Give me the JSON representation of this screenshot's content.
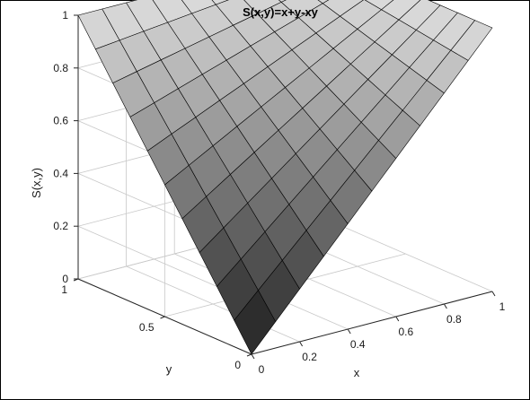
{
  "chart_data": {
    "type": "surface",
    "title": "S(x,y)=x+y-xy",
    "xlabel": "x",
    "ylabel": "y",
    "zlabel": "S(x,y)",
    "xlim": [
      0,
      1
    ],
    "ylim": [
      0,
      1
    ],
    "zlim": [
      0,
      1
    ],
    "x_ticks": [
      "0",
      "0.2",
      "0.4",
      "0.6",
      "0.8",
      "1"
    ],
    "y_ticks": [
      "0",
      "0.5",
      "1"
    ],
    "z_ticks": [
      "0",
      "0.2",
      "0.4",
      "0.6",
      "0.8",
      "1"
    ],
    "grid": true,
    "mesh_step": 0.1,
    "x": [
      0,
      0.1,
      0.2,
      0.3,
      0.4,
      0.5,
      0.6,
      0.7,
      0.8,
      0.9,
      1
    ],
    "y": [
      0,
      0.1,
      0.2,
      0.3,
      0.4,
      0.5,
      0.6,
      0.7,
      0.8,
      0.9,
      1
    ],
    "z": [
      [
        0,
        0.1,
        0.2,
        0.3,
        0.4,
        0.5,
        0.6,
        0.7,
        0.8,
        0.9,
        1
      ],
      [
        0.1,
        0.19,
        0.28,
        0.37,
        0.46,
        0.55,
        0.64,
        0.73,
        0.82,
        0.91,
        1
      ],
      [
        0.2,
        0.28,
        0.36,
        0.44,
        0.52,
        0.6,
        0.68,
        0.76,
        0.84,
        0.92,
        1
      ],
      [
        0.3,
        0.37,
        0.44,
        0.51,
        0.58,
        0.65,
        0.72,
        0.79,
        0.86,
        0.93,
        1
      ],
      [
        0.4,
        0.46,
        0.52,
        0.58,
        0.64,
        0.7,
        0.76,
        0.82,
        0.88,
        0.94,
        1
      ],
      [
        0.5,
        0.55,
        0.6,
        0.65,
        0.7,
        0.75,
        0.8,
        0.85,
        0.9,
        0.95,
        1
      ],
      [
        0.6,
        0.64,
        0.68,
        0.72,
        0.76,
        0.8,
        0.84,
        0.88,
        0.92,
        0.96,
        1
      ],
      [
        0.7,
        0.73,
        0.76,
        0.79,
        0.82,
        0.85,
        0.88,
        0.91,
        0.94,
        0.97,
        1
      ],
      [
        0.8,
        0.82,
        0.84,
        0.86,
        0.88,
        0.9,
        0.92,
        0.94,
        0.96,
        0.98,
        1
      ],
      [
        0.9,
        0.91,
        0.92,
        0.93,
        0.94,
        0.95,
        0.96,
        0.97,
        0.98,
        0.99,
        1
      ],
      [
        1,
        1,
        1,
        1,
        1,
        1,
        1,
        1,
        1,
        1,
        1
      ]
    ],
    "colormap": "gray",
    "colors": {
      "low": "#1a1a1a",
      "high": "#dedede",
      "edge": "#000000",
      "axis_lines": "#c8c8c8"
    }
  }
}
